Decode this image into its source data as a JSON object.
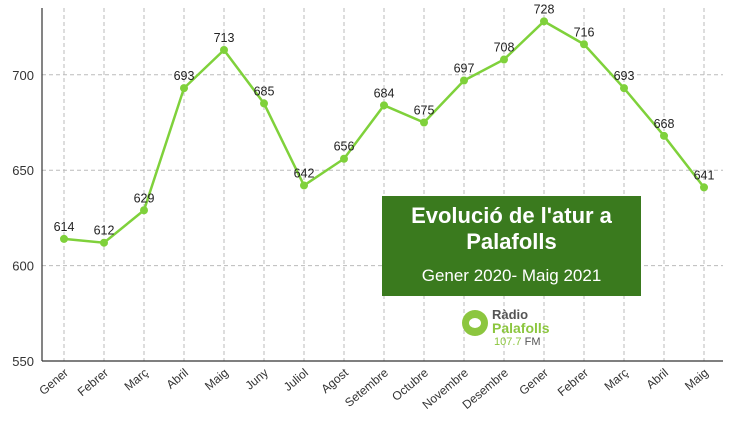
{
  "chart_data": {
    "type": "line",
    "title": "Evolució de l'atur a Palafolls",
    "subtitle": "Gener 2020- Maig 2021",
    "categories": [
      "Gener",
      "Febrer",
      "Març",
      "Abril",
      "Maig",
      "Juny",
      "Juliol",
      "Agost",
      "Setembre",
      "Octubre",
      "Novembre",
      "Desembre",
      "Gener",
      "Febrer",
      "Març",
      "Abril",
      "Maig"
    ],
    "values": [
      614,
      612,
      629,
      693,
      713,
      685,
      642,
      656,
      684,
      675,
      697,
      708,
      728,
      716,
      693,
      668,
      641
    ],
    "ylim": [
      550,
      735
    ],
    "yticks": [
      550,
      600,
      650,
      700
    ],
    "grid": true,
    "line_color": "#7fd13b"
  },
  "logo": {
    "line1": "Ràdio",
    "line2": "Palafolls",
    "freq": "107.7",
    "band": "FM"
  }
}
